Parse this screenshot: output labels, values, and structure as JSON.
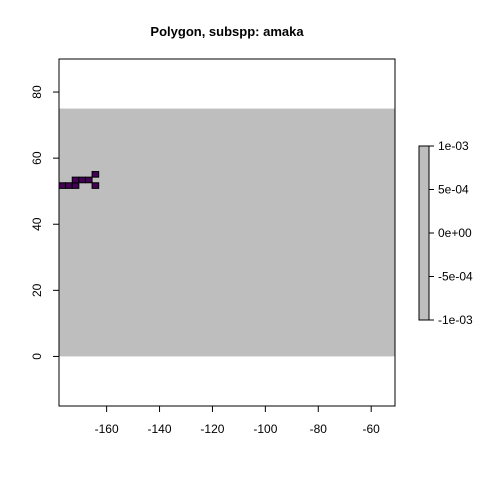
{
  "chart_data": {
    "type": "heatmap",
    "title": "Polygon, subspp: amaka",
    "x_ticks": [
      -160,
      -140,
      -120,
      -100,
      -80,
      -60
    ],
    "y_ticks": [
      0,
      20,
      40,
      60,
      80
    ],
    "xlim": [
      -178,
      -51
    ],
    "ylim": [
      -15,
      90
    ],
    "raster_extent": {
      "xmin": -178,
      "xmax": -51,
      "ymin": 0,
      "ymax": 75
    },
    "cell_size": [
      2.5,
      1.7
    ],
    "fill_color": "#bebebe",
    "polygon_color": "#440154",
    "polygon_outline": "#000000",
    "polygon_cells": [
      {
        "x": -176.75,
        "y": 51.7
      },
      {
        "x": -174.25,
        "y": 51.7
      },
      {
        "x": -171.75,
        "y": 51.7
      },
      {
        "x": -171.75,
        "y": 53.4
      },
      {
        "x": -169.25,
        "y": 53.4
      },
      {
        "x": -166.75,
        "y": 53.4
      },
      {
        "x": -164.25,
        "y": 55.1
      },
      {
        "x": -164.25,
        "y": 51.7
      }
    ],
    "legend": {
      "labels": [
        "1e-03",
        "5e-04",
        "0e+00",
        "-5e-04",
        "-1e-03"
      ],
      "color": "#bebebe",
      "placement": "right"
    }
  }
}
